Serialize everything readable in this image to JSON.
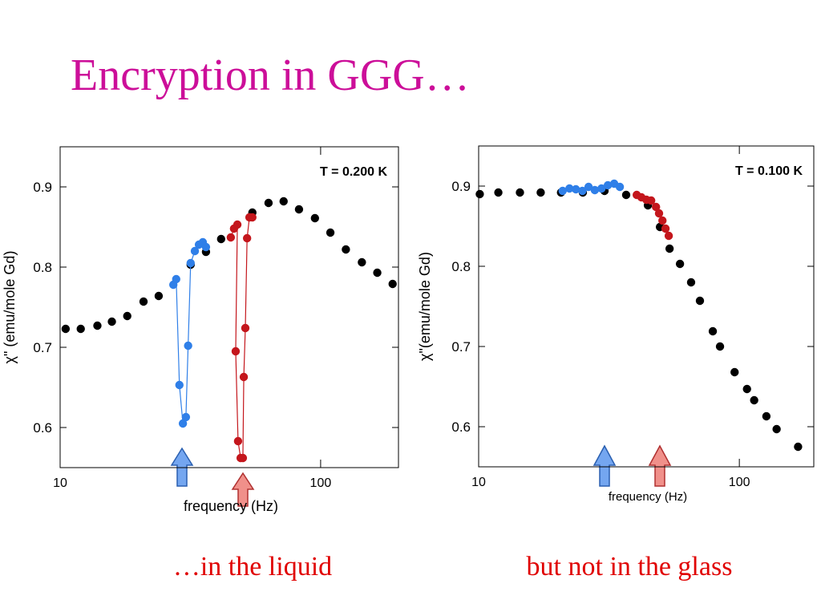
{
  "title": "Encryption in GGG…",
  "captions": [
    "…in the liquid",
    "but not in the glass"
  ],
  "chart_data": [
    {
      "type": "scatter",
      "annotation": "T = 0.200 K",
      "xlabel": "frequency (Hz)",
      "ylabel": "χ\" (emu/mole Gd)",
      "xscale": "log",
      "xlim": [
        10,
        199
      ],
      "xticks": [
        10,
        100
      ],
      "ylim": [
        0.55,
        0.95
      ],
      "yticks": [
        0.6,
        0.7,
        0.8,
        0.9
      ],
      "series": [
        {
          "color": "#000000",
          "x": [
            10.5,
            12.0,
            13.9,
            15.8,
            18.1,
            20.9,
            23.9,
            31.7,
            36.3,
            41.5,
            54.7,
            63.1,
            72.1,
            82.6,
            95.1,
            109,
            125,
            144,
            165,
            189
          ],
          "values": [
            0.723,
            0.723,
            0.727,
            0.732,
            0.739,
            0.757,
            0.764,
            0.803,
            0.819,
            0.835,
            0.868,
            0.88,
            0.882,
            0.872,
            0.861,
            0.843,
            0.822,
            0.806,
            0.793,
            0.779
          ]
        },
        {
          "color": "#2f7fe8",
          "connect": true,
          "x": [
            27.2,
            27.9,
            28.7,
            29.6,
            30.4,
            31.0,
            31.7,
            32.9,
            34.1,
            35.3,
            36.3
          ],
          "values": [
            0.778,
            0.785,
            0.653,
            0.605,
            0.613,
            0.702,
            0.805,
            0.82,
            0.828,
            0.831,
            0.825
          ]
        },
        {
          "color": "#c4161c",
          "connect": true,
          "x": [
            45.2,
            46.5,
            47.9,
            47.2,
            48.2,
            49.3,
            50.3,
            50.7,
            51.4,
            52.2,
            53.3,
            54.7
          ],
          "values": [
            0.837,
            0.848,
            0.853,
            0.695,
            0.583,
            0.562,
            0.562,
            0.663,
            0.724,
            0.836,
            0.862,
            0.862
          ]
        }
      ]
    },
    {
      "type": "scatter",
      "annotation": "T = 0.100 K",
      "xlabel": "frequency (Hz)",
      "ylabel": "χ\"(emu/mole Gd)",
      "xscale": "log",
      "xlim": [
        10,
        193
      ],
      "xticks": [
        10,
        100
      ],
      "ylim": [
        0.55,
        0.95
      ],
      "yticks": [
        0.6,
        0.7,
        0.8,
        0.9
      ],
      "series": [
        {
          "color": "#000000",
          "x": [
            10.1,
            11.9,
            14.4,
            17.3,
            20.7,
            25.1,
            30.4,
            36.8,
            44.6,
            49.6,
            54.0,
            59.2,
            65.3,
            70.6,
            79.1,
            84.3,
            95.9,
            107,
            114,
            127,
            139,
            168
          ],
          "values": [
            0.89,
            0.892,
            0.892,
            0.892,
            0.892,
            0.892,
            0.894,
            0.889,
            0.876,
            0.849,
            0.822,
            0.803,
            0.78,
            0.757,
            0.719,
            0.7,
            0.668,
            0.647,
            0.633,
            0.613,
            0.597,
            0.575
          ]
        },
        {
          "color": "#2f7fe8",
          "x": [
            21.0,
            22.3,
            23.6,
            25.0,
            26.4,
            27.9,
            29.6,
            31.3,
            33.1,
            34.8
          ],
          "values": [
            0.894,
            0.897,
            0.896,
            0.894,
            0.899,
            0.895,
            0.897,
            0.901,
            0.903,
            0.899
          ]
        },
        {
          "color": "#c4161c",
          "x": [
            40.4,
            42.1,
            44.0,
            45.9,
            47.9,
            49.2,
            50.7,
            52.1,
            53.6
          ],
          "values": [
            0.889,
            0.886,
            0.883,
            0.882,
            0.874,
            0.866,
            0.857,
            0.847,
            0.838
          ]
        }
      ]
    }
  ]
}
